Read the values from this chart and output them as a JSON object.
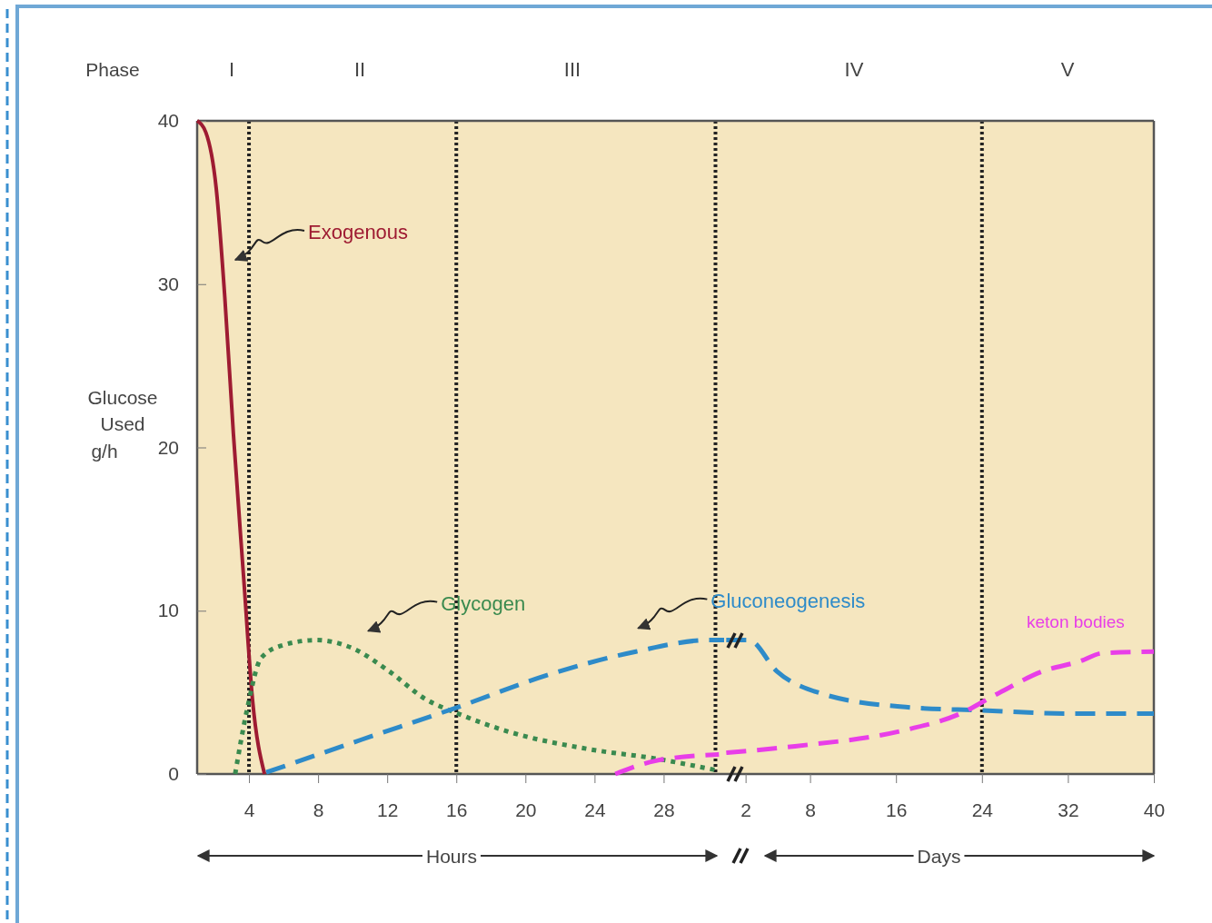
{
  "chart_data": [
    {
      "type": "line",
      "ylabel": "Glucose Used g/h",
      "xlabel": "Hours",
      "xlim": [
        1,
        31.5
      ],
      "xticks": [
        4,
        8,
        12,
        16,
        20,
        24,
        28
      ],
      "ylim": [
        0,
        40
      ],
      "yticks": [
        0,
        10,
        20,
        30,
        40
      ],
      "annotations": [
        "Phase",
        "I",
        "II",
        "III"
      ],
      "ref_lines": [
        {
          "axis": "x",
          "value": 4,
          "label": null,
          "line_style": "dotted"
        },
        {
          "axis": "x",
          "value": 16,
          "label": null,
          "line_style": "dotted"
        },
        {
          "axis": "x",
          "value": 31,
          "label": null,
          "line_style": "dotted"
        }
      ],
      "series": [
        {
          "name": "Exogenous",
          "color": "#9e1b32",
          "line_style": "solid",
          "x": [
            1,
            1.5,
            2.1,
            2.6,
            3.1,
            3.7,
            4.2,
            4.9
          ],
          "values": [
            40,
            39.3,
            35.9,
            29.2,
            20.8,
            11.9,
            4.6,
            0
          ]
        },
        {
          "name": "Glycogen",
          "color": "#3a8a4f",
          "line_style": "dotted",
          "x": [
            3.2,
            3.9,
            4.7,
            6,
            7.9,
            10,
            12.1,
            14.2,
            16.1,
            19,
            23.8,
            27.5,
            31.2
          ],
          "values": [
            0,
            4,
            7.1,
            7.9,
            8.2,
            7.7,
            6.3,
            4.6,
            3.7,
            2.6,
            1.5,
            0.95,
            0.2
          ]
        },
        {
          "color": "#2e8bc9",
          "line_style": "dashed",
          "x": [
            5,
            10.5,
            16.1,
            21.1,
            26.4,
            30.6,
            31.5
          ],
          "values": [
            0.1,
            2.1,
            4.1,
            6,
            7.5,
            8.2,
            8.2
          ]
        },
        {
          "color": "#e83ee8",
          "line_style": "dashed",
          "x": [
            25.2,
            27.5,
            31.2
          ],
          "values": [
            0,
            0.8,
            1.2
          ]
        }
      ]
    },
    {
      "type": "line",
      "xlabel": "Days",
      "xlim": [
        0,
        40
      ],
      "xticks": [
        2,
        8,
        16,
        24,
        32,
        40
      ],
      "ylim": [
        0,
        40
      ],
      "tick_labels": "x",
      "annotations": [
        "IV",
        "V"
      ],
      "ref_lines": [
        {
          "axis": "x",
          "value": 24,
          "label": null,
          "line_style": "dotted"
        }
      ],
      "series": [
        {
          "name": "Gluconeogenesis",
          "color": "#2e8bc9",
          "line_style": "dashed",
          "x": [
            0.2,
            2.3,
            4.9,
            9.2,
            16.9,
            23.8,
            32.3,
            40
          ],
          "values": [
            8.2,
            8.2,
            6.3,
            4.9,
            4.1,
            3.9,
            3.7,
            3.7
          ]
        },
        {
          "name": "keton bodies",
          "color": "#e83ee8",
          "line_style": "dashed",
          "x": [
            0.2,
            6.6,
            16.9,
            22,
            25.4,
            29.7,
            33.1,
            35.2,
            40
          ],
          "values": [
            1.3,
            1.7,
            2.7,
            3.7,
            4.9,
            6.3,
            6.9,
            7.4,
            7.5
          ]
        }
      ]
    }
  ]
}
